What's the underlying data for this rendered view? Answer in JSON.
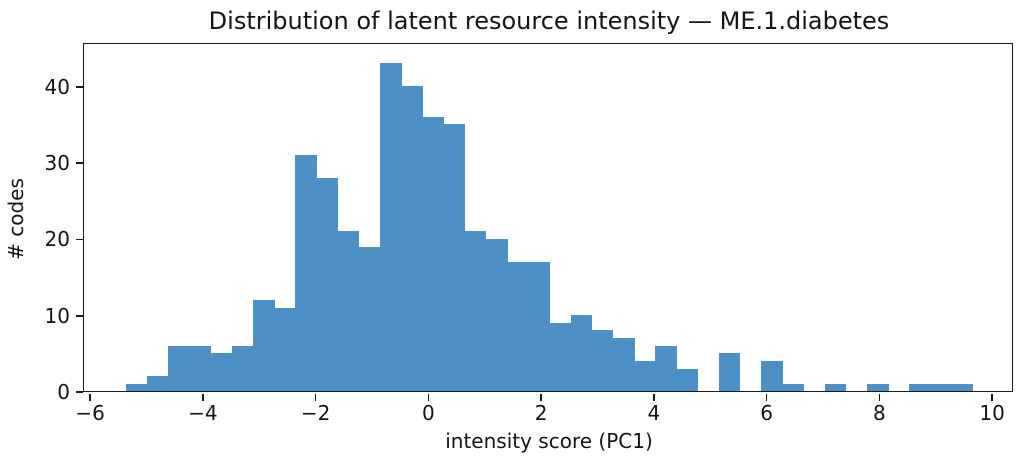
{
  "title": "Distribution of latent resource intensity — ME.1.diabetes",
  "chart_data": {
    "type": "bar",
    "subtype": "histogram",
    "title": "Distribution of latent resource intensity — ME.1.diabetes",
    "xlabel": "intensity score (PC1)",
    "ylabel": "# codes",
    "bar_color": "#4c90c6",
    "grid": false,
    "legend": null,
    "bin_start": -5.35,
    "bin_width": 0.3755,
    "counts": [
      1,
      2,
      6,
      6,
      5,
      6,
      12,
      11,
      31,
      28,
      21,
      19,
      43,
      40,
      36,
      35,
      21,
      20,
      17,
      17,
      9,
      10,
      8,
      7,
      4,
      6,
      3,
      0,
      5,
      0,
      4,
      1,
      0,
      1,
      0,
      1,
      0,
      1,
      1,
      1
    ],
    "xlim": [
      -6.09,
      10.37
    ],
    "ylim": [
      0,
      45.5
    ],
    "x_tick_values": [
      -6,
      -4,
      -2,
      0,
      2,
      4,
      6,
      8,
      10
    ],
    "x_tick_labels": [
      "−6",
      "−4",
      "−2",
      "0",
      "2",
      "4",
      "6",
      "8",
      "10"
    ],
    "y_tick_values": [
      0,
      10,
      20,
      30,
      40
    ],
    "y_tick_labels": [
      "0",
      "10",
      "20",
      "30",
      "40"
    ]
  }
}
